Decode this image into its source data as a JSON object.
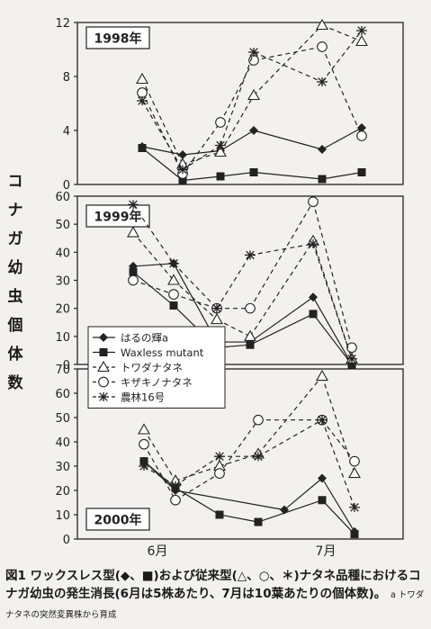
{
  "figure": {
    "ylabel": "コナガ幼虫個体数",
    "xticks": [
      "6月",
      "7月"
    ],
    "caption_main": "図1 ワックスレス型(◆、■)および従来型(△、○、＊)ナタネ品種におけるコナガ幼虫の発生消長(6月は5株あたり、7月は10葉あたりの個体数)。",
    "caption_note": "a トワダナタネの突然変異株から育成"
  },
  "legend": [
    {
      "label": "はるの輝a",
      "marker": "diamond",
      "dash": "solid"
    },
    {
      "label": "Waxless mutant",
      "marker": "square",
      "dash": "solid"
    },
    {
      "label": "トワダナタネ",
      "marker": "triangle",
      "dash": "dash"
    },
    {
      "label": "キザキノナタネ",
      "marker": "circle",
      "dash": "dash"
    },
    {
      "label": "農林16号",
      "marker": "asterisk",
      "dash": "dash"
    }
  ],
  "colors": {
    "line": "#222222",
    "background": "#f3f1ee"
  },
  "chart_data": [
    {
      "type": "line",
      "title": "1998年",
      "ylim": [
        0,
        12
      ],
      "yticks": [
        0,
        4,
        8,
        12
      ],
      "x": [
        1,
        2,
        3,
        4,
        5,
        6,
        7
      ],
      "series": [
        {
          "name": "はるの輝a",
          "values": [
            2.8,
            2.2,
            2.5,
            4.0,
            null,
            2.6,
            4.2
          ]
        },
        {
          "name": "Waxless mutant",
          "values": [
            2.7,
            0.3,
            0.6,
            0.9,
            null,
            0.4,
            0.9
          ]
        },
        {
          "name": "トワダナタネ",
          "values": [
            7.8,
            1.5,
            2.4,
            6.6,
            null,
            11.8,
            10.6
          ]
        },
        {
          "name": "キザキノナタネ",
          "values": [
            6.8,
            0.8,
            4.6,
            9.2,
            null,
            10.2,
            3.6
          ]
        },
        {
          "name": "農林16号",
          "values": [
            6.2,
            1.1,
            2.9,
            9.8,
            null,
            7.6,
            11.4
          ]
        }
      ]
    },
    {
      "type": "line",
      "title": "1999年",
      "ylim": [
        0,
        60
      ],
      "yticks": [
        0,
        10,
        20,
        30,
        40,
        50,
        60
      ],
      "x": [
        1,
        2,
        3,
        4,
        5,
        6,
        7
      ],
      "series": [
        {
          "name": "はるの輝a",
          "values": [
            35,
            36,
            8,
            8,
            null,
            24,
            0
          ]
        },
        {
          "name": "Waxless mutant",
          "values": [
            33,
            21,
            6,
            7,
            null,
            18,
            0
          ]
        },
        {
          "name": "トワダナタネ",
          "values": [
            47,
            30,
            16,
            10,
            null,
            44,
            2
          ]
        },
        {
          "name": "キザキノナタネ",
          "values": [
            30,
            25,
            20,
            20,
            null,
            58,
            6
          ]
        },
        {
          "name": "農林16号",
          "values": [
            57,
            36,
            20,
            39,
            null,
            43,
            2
          ]
        }
      ]
    },
    {
      "type": "line",
      "title": "2000年",
      "ylim": [
        0,
        70
      ],
      "yticks": [
        0,
        10,
        20,
        30,
        40,
        50,
        60,
        70
      ],
      "x": [
        1,
        2,
        3,
        4,
        5,
        6,
        7,
        8,
        9
      ],
      "series": [
        {
          "name": "はるの輝a",
          "values": [
            32,
            20,
            null,
            null,
            12,
            25,
            3,
            null,
            null
          ]
        },
        {
          "name": "Waxless mutant",
          "values": [
            32,
            21,
            10,
            7,
            null,
            16,
            2,
            null,
            null
          ]
        },
        {
          "name": "トワダナタネ",
          "values": [
            45,
            24,
            30,
            35,
            null,
            67,
            27,
            null,
            null
          ]
        },
        {
          "name": "キザキノナタネ",
          "values": [
            39,
            16,
            27,
            49,
            null,
            49,
            32,
            null,
            null
          ]
        },
        {
          "name": "農林16号",
          "values": [
            30,
            22,
            34,
            34,
            null,
            49,
            13,
            null,
            null
          ]
        }
      ]
    }
  ]
}
